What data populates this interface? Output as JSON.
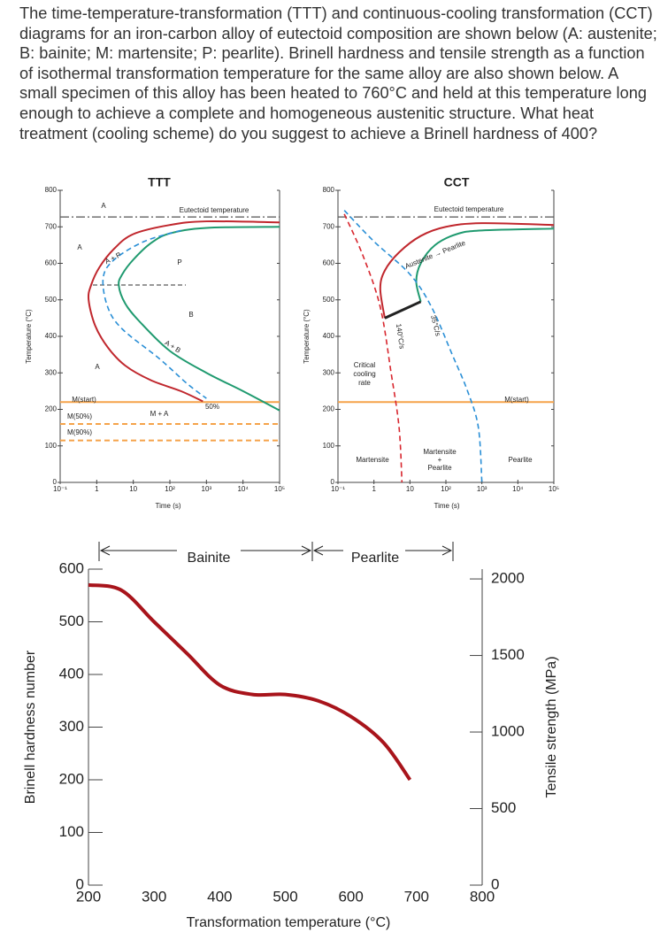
{
  "question": "The time-temperature-transformation (TTT) and continuous-cooling transformation (CCT) diagrams for an iron-carbon alloy of eutectoid composition are shown below (A: austenite; B: bainite; M: martensite; P: pearlite). Brinell hardness and tensile strength as a function of isothermal transformation temperature for the same alloy are also shown below. A small specimen of this alloy has been heated to 760°C and held at this temperature long enough to achieve a complete and homogeneous austenitic structure. What heat treatment (cooling scheme) do you suggest to achieve a Brinell hardness of 400?",
  "chart_data": [
    {
      "type": "line",
      "title": "TTT",
      "x_label": "Time (s)",
      "y_label": "Temperature (°C)",
      "xscale": "log",
      "xlim": [
        0.1,
        100000
      ],
      "ylim": [
        0,
        800
      ],
      "xticks": [
        {
          "value": 0.1,
          "label": "10⁻¹"
        },
        1,
        10,
        {
          "value": 100,
          "label": "10²"
        },
        {
          "value": 1000,
          "label": "10³"
        },
        {
          "value": 10000,
          "label": "10⁴"
        },
        {
          "value": 100000,
          "label": "10⁵"
        }
      ],
      "yticks": [
        0,
        100,
        200,
        300,
        400,
        500,
        600,
        700,
        800
      ],
      "series": [
        {
          "color": "#c0272d",
          "style": "solid",
          "x": [
            100000,
            1000,
            100,
            10,
            3,
            1.2,
            0.7,
            0.6,
            0.9,
            2,
            6,
            30,
            200,
            800
          ],
          "values": [
            712,
            715,
            705,
            680,
            640,
            590,
            540,
            500,
            430,
            370,
            320,
            280,
            250,
            222
          ]
        },
        {
          "color": "#1f9a6f",
          "style": "solid",
          "x": [
            100000,
            1000,
            100,
            30,
            10,
            5,
            4,
            6,
            15,
            100,
            1000,
            10000,
            100000
          ],
          "values": [
            700,
            697,
            682,
            655,
            610,
            570,
            540,
            490,
            440,
            360,
            300,
            250,
            197
          ]
        },
        {
          "color": "#2a8fd6",
          "style": "dashed",
          "x": [
            200,
            20,
            3,
            1.5,
            2,
            5,
            50,
            300,
            1000
          ],
          "values": [
            690,
            660,
            610,
            560,
            480,
            420,
            340,
            270,
            230
          ]
        }
      ],
      "hlines": [
        {
          "value": 727,
          "color": "#555555",
          "style": "dashdot"
        },
        {
          "value": 220,
          "color": "#f5a34a",
          "style": "solid"
        },
        {
          "value": 160,
          "color": "#f5a34a",
          "style": "dashed"
        },
        {
          "value": 115,
          "color": "#f5a34a",
          "style": "dashed"
        }
      ],
      "annotations": [
        "Eutectoid temperature",
        "A",
        "A",
        "A + P",
        "P",
        "B",
        "A + B",
        "A",
        "M(start)",
        "50%",
        "M + A",
        "M(50%)",
        "M(90%)"
      ]
    },
    {
      "type": "line",
      "title": "CCT",
      "x_label": "Time (s)",
      "y_label": "Temperature (°C)",
      "xscale": "log",
      "xlim": [
        0.1,
        100000
      ],
      "ylim": [
        0,
        800
      ],
      "xticks": [
        {
          "value": 0.1,
          "label": "10⁻¹"
        },
        1,
        10,
        {
          "value": 100,
          "label": "10²"
        },
        {
          "value": 1000,
          "label": "10³"
        },
        {
          "value": 10000,
          "label": "10⁴"
        },
        {
          "value": 100000,
          "label": "10⁵"
        }
      ],
      "yticks": [
        0,
        100,
        200,
        300,
        400,
        500,
        600,
        700,
        800
      ],
      "series": [
        {
          "color": "#c0272d",
          "style": "solid",
          "x": [
            100000,
            1000,
            100,
            20,
            5,
            2,
            1.5,
            2
          ],
          "values": [
            705,
            710,
            700,
            675,
            630,
            580,
            530,
            450
          ]
        },
        {
          "color": "#1f9a6f",
          "style": "solid",
          "x": [
            100000,
            1000,
            200,
            50,
            20,
            15,
            20
          ],
          "values": [
            695,
            690,
            680,
            650,
            600,
            550,
            495
          ]
        },
        {
          "color": "#222222",
          "style": "thick",
          "x": [
            2,
            20
          ],
          "values": [
            450,
            495
          ]
        },
        {
          "color": "#d8262e",
          "style": "dashed",
          "x": [
            0.15,
            0.5,
            1.5,
            3,
            5,
            6
          ],
          "values": [
            735,
            620,
            480,
            300,
            150,
            0
          ]
        },
        {
          "color": "#2a8fd6",
          "style": "dashed",
          "x": [
            0.15,
            1,
            10,
            40,
            150,
            400,
            800,
            1000
          ],
          "values": [
            745,
            660,
            570,
            480,
            350,
            250,
            150,
            0
          ]
        }
      ],
      "hlines": [
        {
          "value": 727,
          "color": "#555555",
          "style": "dashdot"
        },
        {
          "value": 220,
          "color": "#f5a34a",
          "style": "solid"
        }
      ],
      "annotations": [
        "Eutectoid temperature",
        "Austenite → Pearlite",
        "140°C/s",
        "35°C/s",
        "Critical",
        "cooling",
        "rate",
        "M(start)",
        "Martensite",
        "Martensite",
        "+",
        "Pearlite",
        "Pearlite"
      ]
    },
    {
      "type": "line",
      "x_label": "Transformation temperature (°C)",
      "y_label": "Brinell hardness number",
      "y2_label": "Tensile strength (MPa)",
      "xlim": [
        200,
        800
      ],
      "ylim": [
        0,
        600
      ],
      "y2lim": [
        0,
        2064
      ],
      "xticks": [
        200,
        300,
        400,
        500,
        600,
        700,
        800
      ],
      "yticks": [
        0,
        100,
        200,
        300,
        400,
        500,
        600
      ],
      "y2ticks": [
        0,
        500,
        1000,
        1500,
        2000
      ],
      "series": [
        {
          "color": "#a8141b",
          "style": "heavy",
          "x": [
            200,
            250,
            300,
            350,
            400,
            450,
            500,
            550,
            600,
            650,
            690
          ],
          "values": [
            570,
            560,
            500,
            440,
            380,
            362,
            362,
            350,
            320,
            270,
            200
          ]
        }
      ],
      "ranges": [
        "Bainite",
        "Pearlite"
      ]
    }
  ]
}
